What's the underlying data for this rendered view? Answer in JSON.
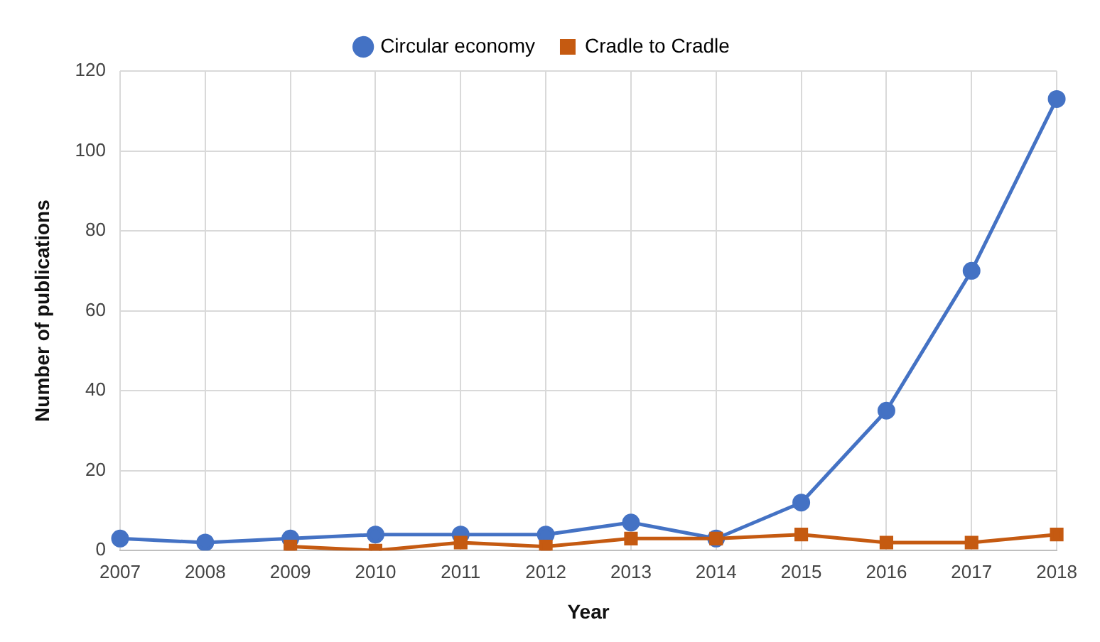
{
  "chart_data": {
    "type": "line",
    "xlabel": "Year",
    "ylabel": "Number of publications",
    "categories": [
      "2007",
      "2008",
      "2009",
      "2010",
      "2011",
      "2012",
      "2013",
      "2014",
      "2015",
      "2016",
      "2017",
      "2018"
    ],
    "series": [
      {
        "name": "Circular economy",
        "color": "#4472c4",
        "marker": "circle",
        "values": [
          3,
          2,
          3,
          4,
          4,
          4,
          7,
          3,
          12,
          35,
          70,
          113
        ]
      },
      {
        "name": "Cradle to Cradle",
        "color": "#c55a11",
        "marker": "square",
        "values": [
          null,
          null,
          1,
          0,
          2,
          1,
          3,
          3,
          4,
          2,
          2,
          4
        ]
      }
    ],
    "ylim": [
      0,
      120
    ],
    "yticks": [
      0,
      20,
      40,
      60,
      80,
      100,
      120
    ],
    "grid": true,
    "legend": "top"
  }
}
